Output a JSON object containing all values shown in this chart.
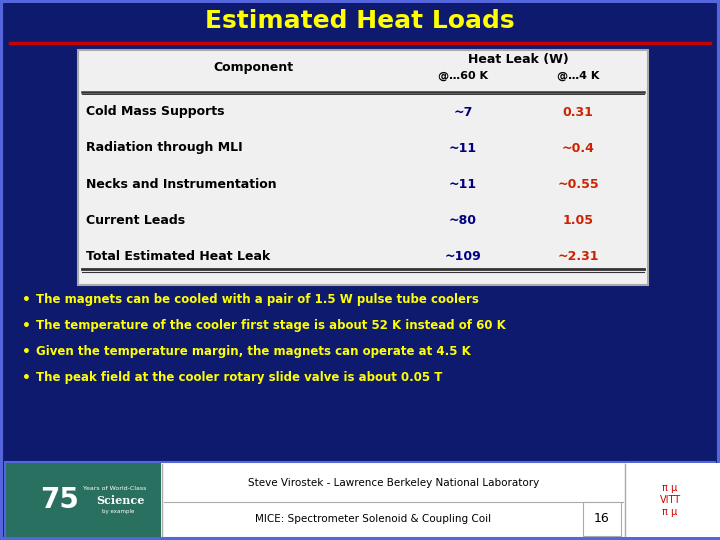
{
  "title": "Estimated Heat Loads",
  "title_color": "#FFFF00",
  "bg_color": "#0d1a6e",
  "slide_border_color": "#5566dd",
  "red_line_color": "#cc0000",
  "table_bg": "#f0f0f0",
  "table_data_col1_color": "#000000",
  "table_data_col2_color": "#000080",
  "table_data_col3_color": "#cc2200",
  "table_rows": [
    [
      "Cold Mass Supports",
      "~7",
      "0.31"
    ],
    [
      "Radiation through MLI",
      "~11",
      "~0.4"
    ],
    [
      "Necks and Instrumentation",
      "~11",
      "~0.55"
    ],
    [
      "Current Leads",
      "~80",
      "1.05"
    ],
    [
      "Total Estimated Heat Leak",
      "~109",
      "~2.31"
    ]
  ],
  "bullet_color": "#FFFF00",
  "bullets": [
    "The magnets can be cooled with a pair of 1.5 W pulse tube coolers",
    "The temperature of the cooler first stage is about 52 K instead of 60 K",
    "Given the temperature margin, the magnets can operate at 4.5 K",
    "The peak field at the cooler rotary slide valve is about 0.05 T"
  ],
  "footer_text1": "Steve Virostek - Lawrence Berkeley National Laboratory",
  "footer_text2": "MICE: Spectrometer Solenoid & Coupling Coil",
  "footer_page": "16"
}
